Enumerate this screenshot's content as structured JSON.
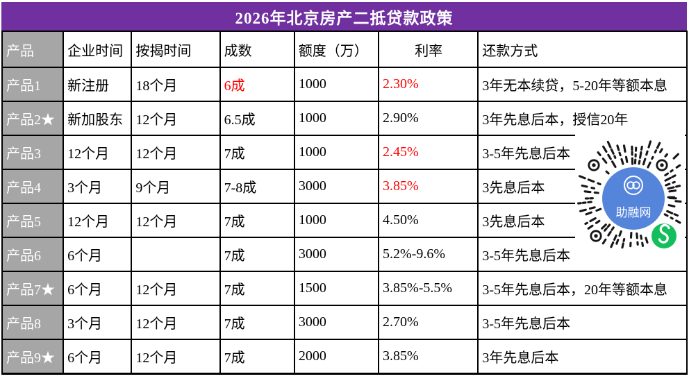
{
  "title": "2026年北京房产二抵贷款政策",
  "colors": {
    "title_bg": "#7030A0",
    "title_text": "#FFFFFF",
    "product_col_bg": "#A6A6A6",
    "product_col_text": "#FFFFFF",
    "highlight_red": "#FF0000",
    "border": "#000000",
    "qr_center_blue": "#5585DB",
    "wechat_green": "#14BE5D",
    "qr_dot_black": "#161616"
  },
  "table": {
    "headers": [
      "产品",
      "企业时间",
      "按揭时间",
      "成数",
      "额度（万）",
      "利率",
      "还款方式"
    ],
    "rows": [
      {
        "product": "产品1",
        "company_time": "新注册",
        "mortgage_time": "18个月",
        "ratio": "6成",
        "quota": "1000",
        "rate": "2.30%",
        "repayment": "3年无本续贷，5-20年等额本息"
      },
      {
        "product": "产品2★",
        "company_time": "新加股东",
        "mortgage_time": "12个月",
        "ratio": "6.5成",
        "quota": "1000",
        "rate": "2.90%",
        "repayment": "3年先息后本，授信20年"
      },
      {
        "product": "产品3",
        "company_time": "12个月",
        "mortgage_time": "12个月",
        "ratio": "7成",
        "quota": "1000",
        "rate": "2.45%",
        "repayment": "3-5年先息后本"
      },
      {
        "product": "产品4",
        "company_time": "3个月",
        "mortgage_time": "9个月",
        "ratio": "7-8成",
        "quota": "3000",
        "rate": "3.85%",
        "repayment": "3先息后本"
      },
      {
        "product": "产品5",
        "company_time": "12个月",
        "mortgage_time": "12个月",
        "ratio": "7成",
        "quota": "1000",
        "rate": "4.50%",
        "repayment": "3先息后本"
      },
      {
        "product": "产品6",
        "company_time": "6个月",
        "mortgage_time": "",
        "ratio": "7成",
        "quota": "3000",
        "rate": "5.2%-9.6%",
        "repayment": "3-5年先息后本"
      },
      {
        "product": "产品7★",
        "company_time": "6个月",
        "mortgage_time": "12个月",
        "ratio": "7成",
        "quota": "1500",
        "rate": "3.85%-5.5%",
        "repayment": "3-5年先息后本，20年等额本息"
      },
      {
        "product": "产品8",
        "company_time": "3个月",
        "mortgage_time": "12个月",
        "ratio": "7成",
        "quota": "3000",
        "rate": "2.70%",
        "repayment": "3-5年先息后本"
      },
      {
        "product": "产品9★",
        "company_time": "6个月",
        "mortgage_time": "12个月",
        "ratio": "7成",
        "quota": "2000",
        "rate": "3.85%",
        "repayment": "3年先息后本"
      }
    ]
  },
  "qr": {
    "label": "助融网"
  }
}
